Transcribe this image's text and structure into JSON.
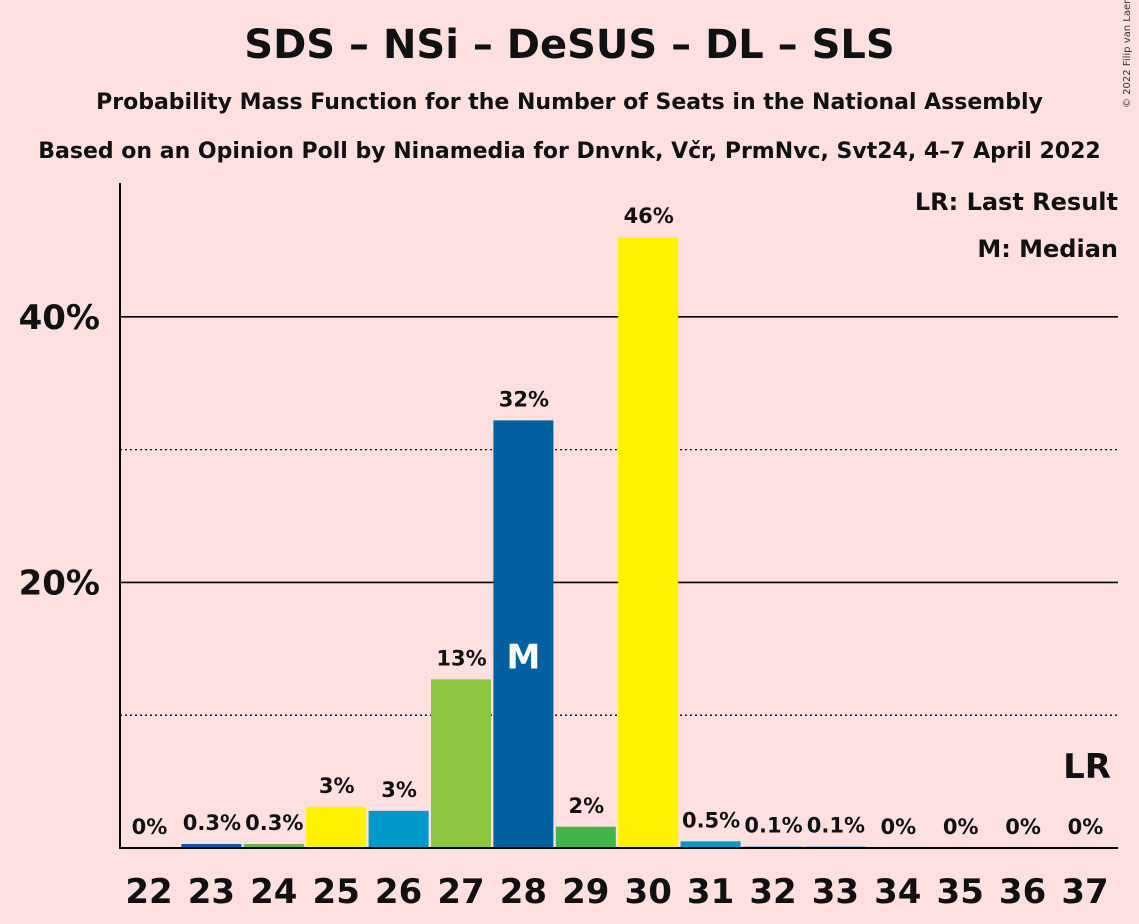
{
  "header": {
    "title": "SDS – NSi – DeSUS – DL – SLS",
    "subtitle1": "Probability Mass Function for the Number of Seats in the National Assembly",
    "subtitle2": "Based on an Opinion Poll by Ninamedia for Dnvnk, Včr, PrmNvc, Svt24, 4–7 April 2022",
    "copyright": "© 2022 Filip van Laenen"
  },
  "legend": {
    "last_result": "LR: Last Result",
    "median": "M: Median"
  },
  "chart_data": {
    "type": "bar",
    "categories": [
      "22",
      "23",
      "24",
      "25",
      "26",
      "27",
      "28",
      "29",
      "30",
      "31",
      "32",
      "33",
      "34",
      "35",
      "36",
      "37"
    ],
    "values": [
      0,
      0.3,
      0.3,
      3.1,
      2.8,
      12.7,
      32.2,
      1.6,
      46.0,
      0.5,
      0.1,
      0.1,
      0,
      0,
      0,
      0
    ],
    "data_labels": [
      "0%",
      "0.3%",
      "0.3%",
      "3%",
      "3%",
      "13%",
      "32%",
      "2%",
      "46%",
      "0.5%",
      "0.1%",
      "0.1%",
      "0%",
      "0%",
      "0%",
      "0%"
    ],
    "colors": [
      "#005BA6",
      "#005BA6",
      "#6EB43F",
      "#FFF200",
      "#0099CC",
      "#8DC63F",
      "#0060A0",
      "#3FB54A",
      "#FFF200",
      "#0099CC",
      "#005BA6",
      "#005BA6",
      "#005BA6",
      "#005BA6",
      "#005BA6",
      "#005BA6"
    ],
    "ylim": [
      0,
      50
    ],
    "y_ticks": [
      20,
      40
    ],
    "y_tick_labels": [
      "20%",
      "40%"
    ],
    "minor_gridlines": [
      10,
      30
    ],
    "median_category": "28",
    "median_marker": "M",
    "last_result_category": "37",
    "last_result_marker": "LR",
    "legend_position": "top-right",
    "background": "#FFE0E0"
  }
}
